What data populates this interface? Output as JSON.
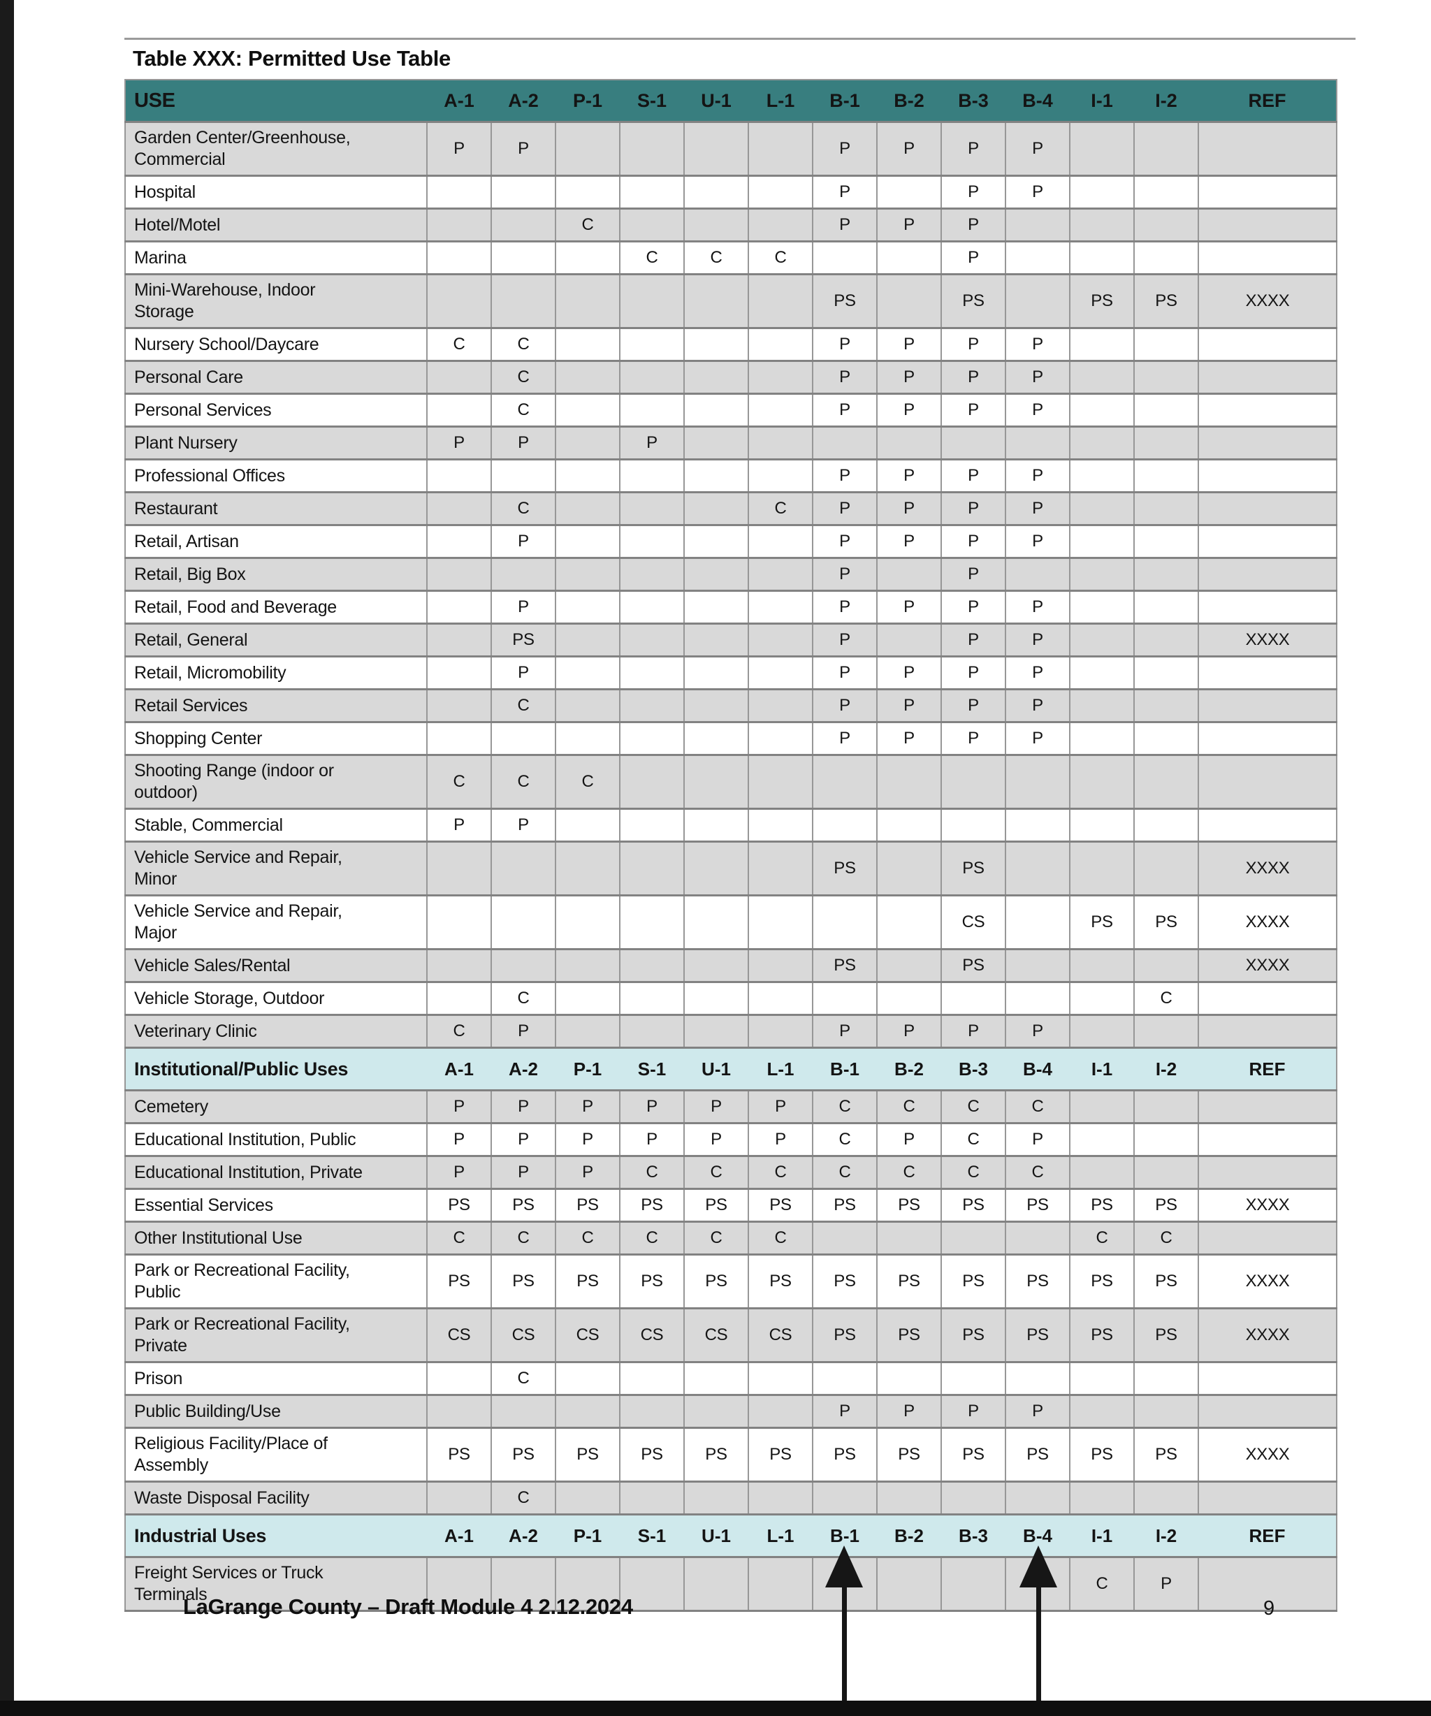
{
  "page": {
    "title": "Table XXX: Permitted Use Table",
    "footer_left": "LaGrange County – Draft Module 4 2.12.2024",
    "page_number": "9"
  },
  "colors": {
    "header_bg": "#387e7f",
    "header_fg": "#d9efef",
    "section_bg": "#cfe9ec",
    "row_shade": "#d9d9d9"
  },
  "annotations": {
    "up_arrows_under_columns": [
      "B-1",
      "B-4"
    ]
  },
  "table": {
    "columns": [
      "USE",
      "A-1",
      "A-2",
      "P-1",
      "S-1",
      "U-1",
      "L-1",
      "B-1",
      "B-2",
      "B-3",
      "B-4",
      "I-1",
      "I-2",
      "REF"
    ],
    "rows": [
      {
        "name": "Garden Center/Greenhouse,\nCommercial",
        "v": [
          "P",
          "P",
          "",
          "",
          "",
          "",
          "P",
          "P",
          "P",
          "P",
          "",
          "",
          ""
        ]
      },
      {
        "name": "Hospital",
        "v": [
          "",
          "",
          "",
          "",
          "",
          "",
          "P",
          "",
          "P",
          "P",
          "",
          "",
          ""
        ]
      },
      {
        "name": "Hotel/Motel",
        "v": [
          "",
          "",
          "C",
          "",
          "",
          "",
          "P",
          "P",
          "P",
          "",
          "",
          "",
          ""
        ]
      },
      {
        "name": "Marina",
        "v": [
          "",
          "",
          "",
          "C",
          "C",
          "C",
          "",
          "",
          "P",
          "",
          "",
          "",
          ""
        ]
      },
      {
        "name": "Mini-Warehouse, Indoor\nStorage",
        "v": [
          "",
          "",
          "",
          "",
          "",
          "",
          "PS",
          "",
          "PS",
          "",
          "PS",
          "PS",
          "XXXX"
        ]
      },
      {
        "name": "Nursery School/Daycare",
        "v": [
          "C",
          "C",
          "",
          "",
          "",
          "",
          "P",
          "P",
          "P",
          "P",
          "",
          "",
          ""
        ]
      },
      {
        "name": "Personal Care",
        "v": [
          "",
          "C",
          "",
          "",
          "",
          "",
          "P",
          "P",
          "P",
          "P",
          "",
          "",
          ""
        ]
      },
      {
        "name": "Personal Services",
        "v": [
          "",
          "C",
          "",
          "",
          "",
          "",
          "P",
          "P",
          "P",
          "P",
          "",
          "",
          ""
        ]
      },
      {
        "name": "Plant Nursery",
        "v": [
          "P",
          "P",
          "",
          "P",
          "",
          "",
          "",
          "",
          "",
          "",
          "",
          "",
          ""
        ]
      },
      {
        "name": "Professional Offices",
        "v": [
          "",
          "",
          "",
          "",
          "",
          "",
          "P",
          "P",
          "P",
          "P",
          "",
          "",
          ""
        ]
      },
      {
        "name": "Restaurant",
        "v": [
          "",
          "C",
          "",
          "",
          "",
          "C",
          "P",
          "P",
          "P",
          "P",
          "",
          "",
          ""
        ]
      },
      {
        "name": "Retail, Artisan",
        "v": [
          "",
          "P",
          "",
          "",
          "",
          "",
          "P",
          "P",
          "P",
          "P",
          "",
          "",
          ""
        ]
      },
      {
        "name": "Retail, Big Box",
        "v": [
          "",
          "",
          "",
          "",
          "",
          "",
          "P",
          "",
          "P",
          "",
          "",
          "",
          ""
        ]
      },
      {
        "name": "Retail, Food and Beverage",
        "v": [
          "",
          "P",
          "",
          "",
          "",
          "",
          "P",
          "P",
          "P",
          "P",
          "",
          "",
          ""
        ]
      },
      {
        "name": "Retail, General",
        "v": [
          "",
          "PS",
          "",
          "",
          "",
          "",
          "P",
          "",
          "P",
          "P",
          "",
          "",
          "XXXX"
        ]
      },
      {
        "name": "Retail, Micromobility",
        "v": [
          "",
          "P",
          "",
          "",
          "",
          "",
          "P",
          "P",
          "P",
          "P",
          "",
          "",
          ""
        ]
      },
      {
        "name": "Retail Services",
        "v": [
          "",
          "C",
          "",
          "",
          "",
          "",
          "P",
          "P",
          "P",
          "P",
          "",
          "",
          ""
        ]
      },
      {
        "name": "Shopping Center",
        "v": [
          "",
          "",
          "",
          "",
          "",
          "",
          "P",
          "P",
          "P",
          "P",
          "",
          "",
          ""
        ]
      },
      {
        "name": "Shooting Range (indoor or\noutdoor)",
        "v": [
          "C",
          "C",
          "C",
          "",
          "",
          "",
          "",
          "",
          "",
          "",
          "",
          "",
          ""
        ]
      },
      {
        "name": "Stable, Commercial",
        "v": [
          "P",
          "P",
          "",
          "",
          "",
          "",
          "",
          "",
          "",
          "",
          "",
          "",
          ""
        ]
      },
      {
        "name": "Vehicle Service and Repair,\nMinor",
        "v": [
          "",
          "",
          "",
          "",
          "",
          "",
          "PS",
          "",
          "PS",
          "",
          "",
          "",
          "XXXX"
        ]
      },
      {
        "name": "Vehicle Service and Repair,\nMajor",
        "v": [
          "",
          "",
          "",
          "",
          "",
          "",
          "",
          "",
          "CS",
          "",
          "PS",
          "PS",
          "XXXX"
        ]
      },
      {
        "name": "Vehicle Sales/Rental",
        "v": [
          "",
          "",
          "",
          "",
          "",
          "",
          "PS",
          "",
          "PS",
          "",
          "",
          "",
          "XXXX"
        ]
      },
      {
        "name": "Vehicle Storage, Outdoor",
        "v": [
          "",
          "C",
          "",
          "",
          "",
          "",
          "",
          "",
          "",
          "",
          "",
          "C",
          ""
        ]
      },
      {
        "name": "Veterinary Clinic",
        "v": [
          "C",
          "P",
          "",
          "",
          "",
          "",
          "P",
          "P",
          "P",
          "P",
          "",
          "",
          ""
        ]
      },
      {
        "section": "Institutional/Public Uses"
      },
      {
        "name": "Cemetery",
        "v": [
          "P",
          "P",
          "P",
          "P",
          "P",
          "P",
          "C",
          "C",
          "C",
          "C",
          "",
          "",
          ""
        ]
      },
      {
        "name": "Educational Institution, Public",
        "v": [
          "P",
          "P",
          "P",
          "P",
          "P",
          "P",
          "C",
          "P",
          "C",
          "P",
          "",
          "",
          ""
        ]
      },
      {
        "name": "Educational Institution, Private",
        "v": [
          "P",
          "P",
          "P",
          "C",
          "C",
          "C",
          "C",
          "C",
          "C",
          "C",
          "",
          "",
          ""
        ]
      },
      {
        "name": "Essential Services",
        "v": [
          "PS",
          "PS",
          "PS",
          "PS",
          "PS",
          "PS",
          "PS",
          "PS",
          "PS",
          "PS",
          "PS",
          "PS",
          "XXXX"
        ]
      },
      {
        "name": "Other Institutional Use",
        "v": [
          "C",
          "C",
          "C",
          "C",
          "C",
          "C",
          "",
          "",
          "",
          "",
          "C",
          "C",
          ""
        ]
      },
      {
        "name": "Park or Recreational Facility,\nPublic",
        "v": [
          "PS",
          "PS",
          "PS",
          "PS",
          "PS",
          "PS",
          "PS",
          "PS",
          "PS",
          "PS",
          "PS",
          "PS",
          "XXXX"
        ]
      },
      {
        "name": "Park or Recreational Facility,\nPrivate",
        "v": [
          "CS",
          "CS",
          "CS",
          "CS",
          "CS",
          "CS",
          "PS",
          "PS",
          "PS",
          "PS",
          "PS",
          "PS",
          "XXXX"
        ]
      },
      {
        "name": "Prison",
        "v": [
          "",
          "C",
          "",
          "",
          "",
          "",
          "",
          "",
          "",
          "",
          "",
          "",
          ""
        ]
      },
      {
        "name": "Public Building/Use",
        "v": [
          "",
          "",
          "",
          "",
          "",
          "",
          "P",
          "P",
          "P",
          "P",
          "",
          "",
          ""
        ]
      },
      {
        "name": "Religious Facility/Place of\nAssembly",
        "v": [
          "PS",
          "PS",
          "PS",
          "PS",
          "PS",
          "PS",
          "PS",
          "PS",
          "PS",
          "PS",
          "PS",
          "PS",
          "XXXX"
        ]
      },
      {
        "name": "Waste Disposal Facility",
        "v": [
          "",
          "C",
          "",
          "",
          "",
          "",
          "",
          "",
          "",
          "",
          "",
          "",
          ""
        ]
      },
      {
        "section": "Industrial Uses"
      },
      {
        "name": "Freight Services or Truck\nTerminals",
        "v": [
          "",
          "",
          "",
          "",
          "",
          "",
          "",
          "",
          "",
          "",
          "C",
          "P",
          ""
        ]
      }
    ]
  }
}
